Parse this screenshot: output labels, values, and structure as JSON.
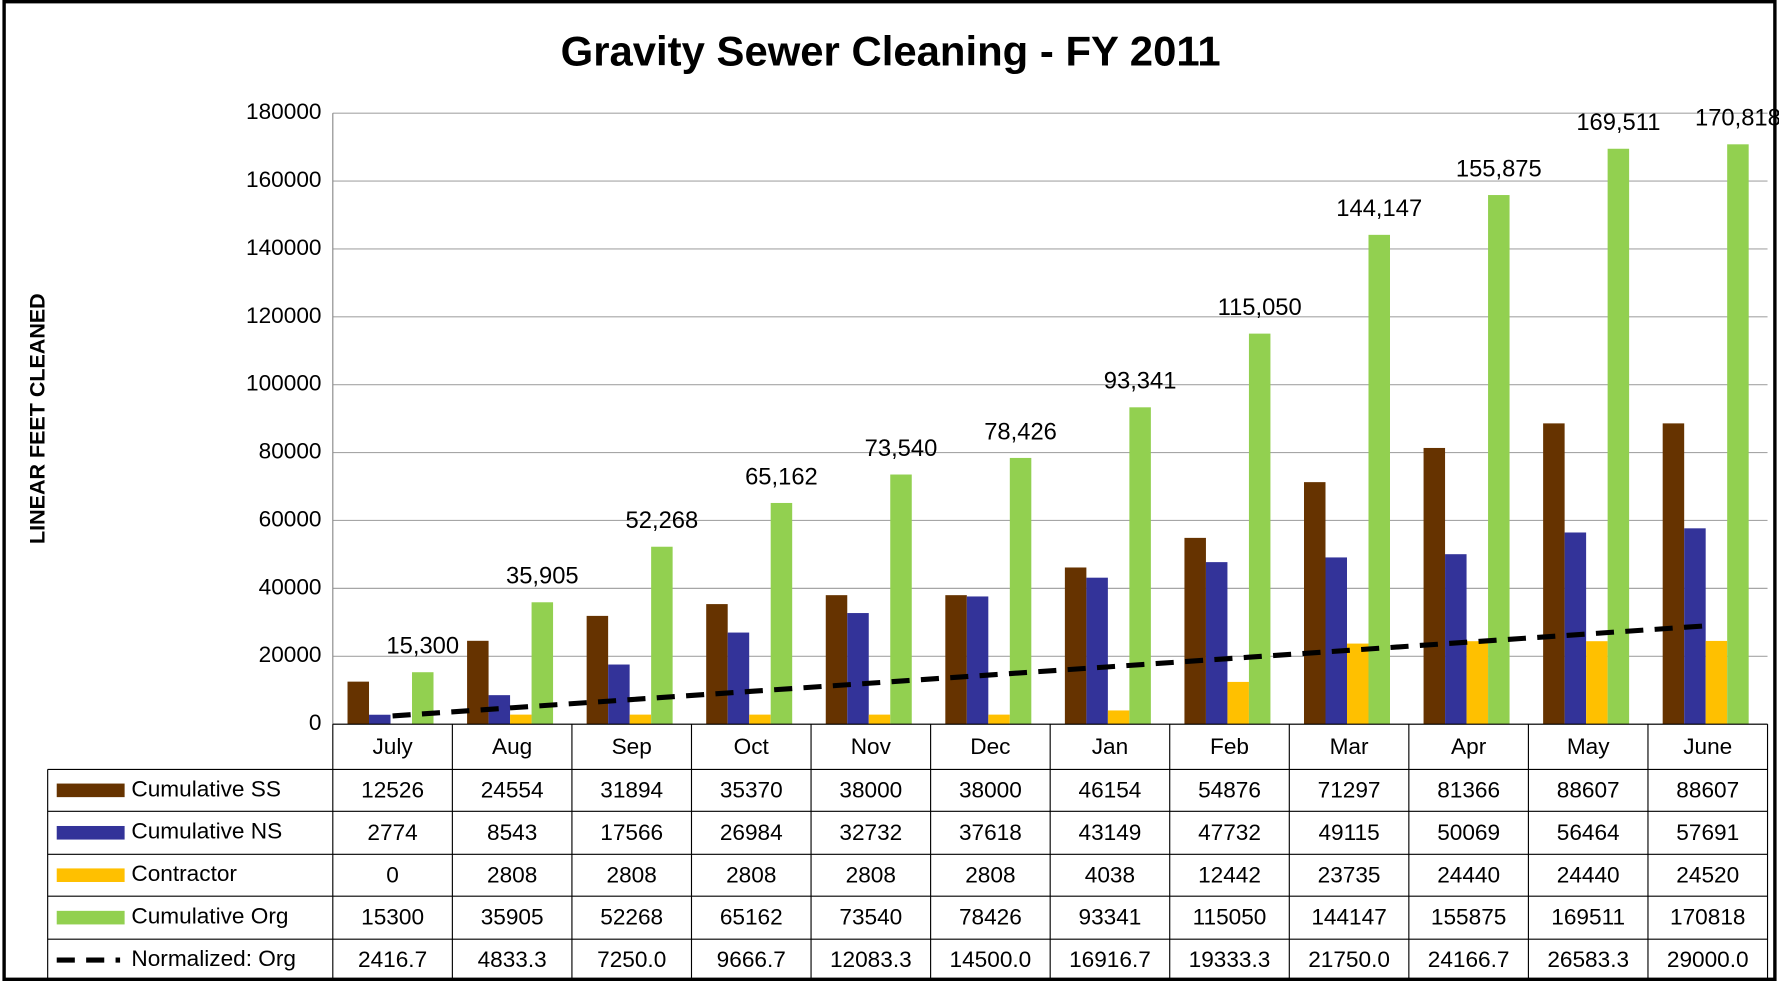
{
  "chart_data": {
    "type": "bar",
    "title": "Gravity Sewer Cleaning - FY 2011",
    "y_label": "LINEAR FEET CLEANED",
    "categories": [
      "July",
      "Aug",
      "Sep",
      "Oct",
      "Nov",
      "Dec",
      "Jan",
      "Feb",
      "Mar",
      "Apr",
      "May",
      "June"
    ],
    "ylim": [
      0,
      180000
    ],
    "yticks": [
      0,
      20000,
      40000,
      60000,
      80000,
      100000,
      120000,
      140000,
      160000,
      180000
    ],
    "grid": true,
    "series": [
      {
        "name": "Cumulative SS",
        "color": "#663300",
        "values": [
          12526,
          24554,
          31894,
          35370,
          38000,
          38000,
          46154,
          54876,
          71297,
          81366,
          88607,
          88607
        ]
      },
      {
        "name": "Cumulative NS",
        "color": "#333399",
        "values": [
          2774,
          8543,
          17566,
          26984,
          32732,
          37618,
          43149,
          47732,
          49115,
          50069,
          56464,
          57691
        ]
      },
      {
        "name": "Contractor",
        "color": "#ffc000",
        "values": [
          0,
          2808,
          2808,
          2808,
          2808,
          2808,
          4038,
          12442,
          23735,
          24440,
          24440,
          24520
        ]
      },
      {
        "name": "Cumulative Org",
        "color": "#92d050",
        "values": [
          15300,
          35905,
          52268,
          65162,
          73540,
          78426,
          93341,
          115050,
          144147,
          155875,
          169511,
          170818
        ],
        "value_labels": [
          "15,300",
          "35,905",
          "52,268",
          "65,162",
          "73,540",
          "78,426",
          "93,341",
          "115,050",
          "144,147",
          "155,875",
          "169,511",
          "170,818"
        ]
      },
      {
        "name": "Normalized: Org",
        "type": "line",
        "color": "#000000",
        "values": [
          2416.7,
          4833.3,
          7250,
          9666.7,
          12083.3,
          14500,
          16916.7,
          19333.3,
          21750,
          24166.7,
          26583.3,
          29000
        ],
        "value_labels": [
          "2416.7",
          "4833.3",
          "7250.0",
          "9666.7",
          "12083.3",
          "14500.0",
          "16916.7",
          "19333.3",
          "21750.0",
          "24166.7",
          "26583.3",
          "29000.0"
        ]
      }
    ]
  }
}
